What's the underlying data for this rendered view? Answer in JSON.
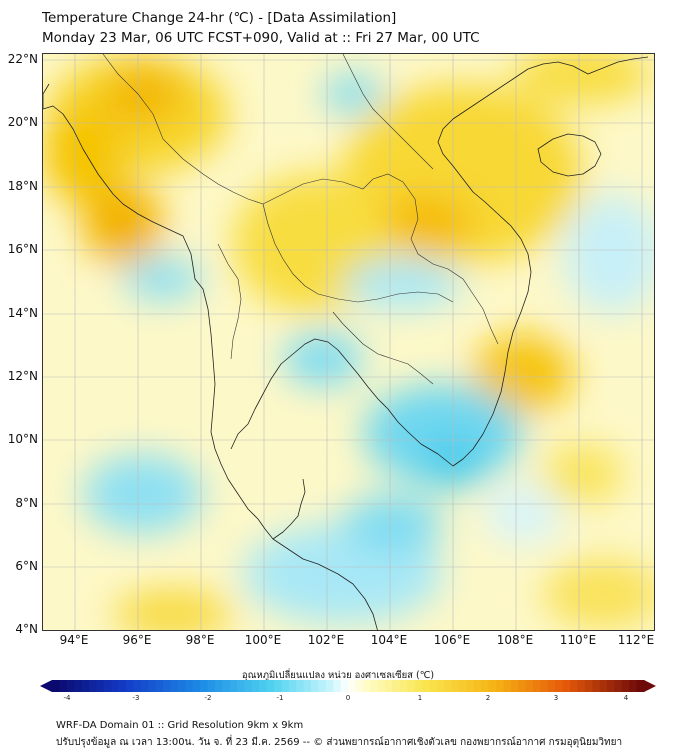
{
  "title_line1": "Temperature Change 24-hr (℃) - [Data Assimilation]",
  "title_line2": "Monday 23 Mar, 06 UTC FCST+090, Valid at :: Fri 27 Mar, 00 UTC",
  "latitude_labels": [
    "22°N",
    "20°N",
    "18°N",
    "16°N",
    "14°N",
    "12°N",
    "10°N",
    "8°N",
    "6°N",
    "4°N"
  ],
  "longitude_labels": [
    "94°E",
    "96°E",
    "98°E",
    "100°E",
    "102°E",
    "104°E",
    "106°E",
    "108°E",
    "110°E",
    "112°E"
  ],
  "colorbar": {
    "label": "อุณหภูมิเปลี่ยนแปลง หน่วย องศาเซลเซียส (℃)",
    "ticks": [
      "-4",
      "-3",
      "-2",
      "-1",
      "0",
      "1",
      "2",
      "3",
      "4"
    ],
    "min": -4,
    "max": 4
  },
  "footer_line1": "WRF-DA Domain 01 :: Grid Resolution 9km x 9km",
  "footer_line2": "ปรับปรุงข้อมูล ณ เวลา 13:00น. วัน จ. ที่ 23 มี.ค. 2569 -- © ส่วนพยากรณ์อากาศเชิงตัวเลข กองพยากรณ์อากาศ กรมอุตุนิยมวิทยา",
  "colors": {
    "warm_strong": "#f5a800",
    "warm": "#f7dc2a",
    "warm_light": "#fcf6a8",
    "neutral": "#ffffff",
    "cool_light": "#c8f2fa",
    "cool": "#5bd2ef",
    "coastline": "#222222"
  }
}
